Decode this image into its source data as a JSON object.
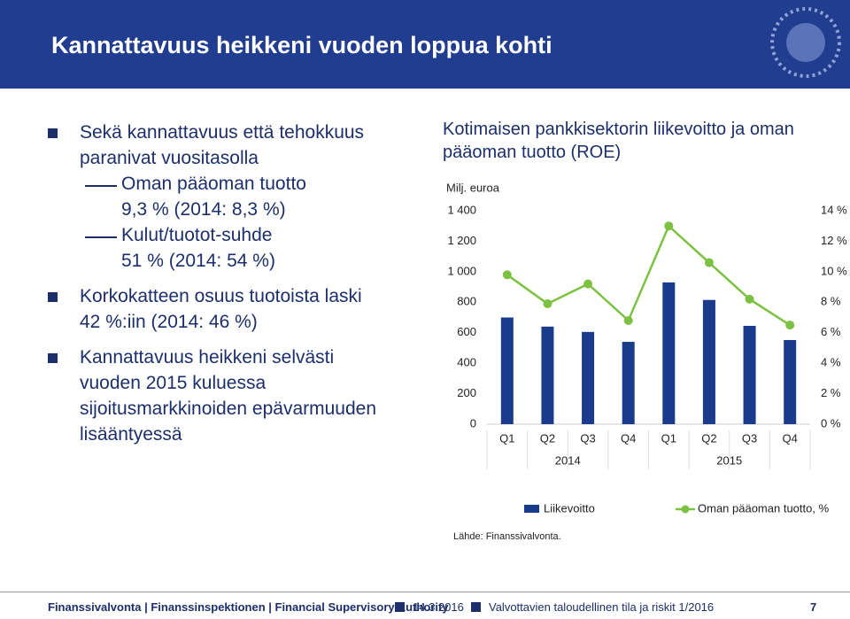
{
  "header": {
    "title": "Kannattavuus heikkeni vuoden loppua kohti"
  },
  "bullets": [
    {
      "lines": [
        "Sekä kannattavuus että tehokkuus",
        "paranivat vuositasolla"
      ],
      "sub": [
        {
          "lines": [
            "Oman pääoman tuotto",
            "9,3 % (2014: 8,3 %)"
          ]
        },
        {
          "lines": [
            "Kulut/tuotot-suhde",
            "51 % (2014: 54 %)"
          ]
        }
      ]
    },
    {
      "lines": [
        "Korkokatteen osuus tuotoista laski",
        "42 %:iin (2014: 46 %)"
      ],
      "sub": []
    },
    {
      "lines": [
        "Kannattavuus heikkeni selvästi",
        "vuoden 2015 kuluessa",
        "sijoitusmarkkinoiden epävarmuuden",
        "lisääntyessä"
      ],
      "sub": []
    }
  ],
  "chart_data": {
    "type": "bar-line",
    "title": "Kotimaisen pankkisektorin liikevoitto ja oman pääoman tuotto (ROE)",
    "y_label": "Milj. euroa",
    "categories": [
      "Q1",
      "Q2",
      "Q3",
      "Q4",
      "Q1",
      "Q2",
      "Q3",
      "Q4"
    ],
    "groups": [
      "2014",
      "2015"
    ],
    "series": [
      {
        "name": "Liikevoitto",
        "color": "#1a3a8c",
        "type": "bar",
        "values": [
          700,
          640,
          605,
          540,
          930,
          815,
          645,
          552
        ]
      },
      {
        "name": "Oman pääoman tuotto, %",
        "color": "#7dc142",
        "type": "line",
        "axis": "y2",
        "values": [
          9.8,
          7.9,
          9.2,
          6.8,
          13.0,
          10.6,
          8.2,
          6.5
        ]
      }
    ],
    "ylim": [
      0,
      1400
    ],
    "yticks": [
      0,
      200,
      400,
      600,
      800,
      {
        "value": 1000,
        "label": "1 000"
      },
      {
        "value": 1200,
        "label": "1 200"
      },
      {
        "value": 1400,
        "label": "1 400"
      }
    ],
    "y2lim": [
      0,
      14
    ],
    "y2ticks": [
      {
        "value": 0,
        "label": "0 %"
      },
      {
        "value": 2,
        "label": "2 %"
      },
      {
        "value": 4,
        "label": "4 %"
      },
      {
        "value": 6,
        "label": "6 %"
      },
      {
        "value": 8,
        "label": "8 %"
      },
      {
        "value": 10,
        "label": "10 %"
      },
      {
        "value": 12,
        "label": "12 %"
      },
      {
        "value": 14,
        "label": "14 %"
      }
    ],
    "source": "Lähde: Finanssivalvonta."
  },
  "footer": {
    "org": "Finanssivalvonta | Finanssinspektionen | Financial Supervisory Authority",
    "date": "14.3.2016",
    "report": "Valvottavien taloudellinen tila ja riskit 1/2016",
    "page": "7"
  }
}
